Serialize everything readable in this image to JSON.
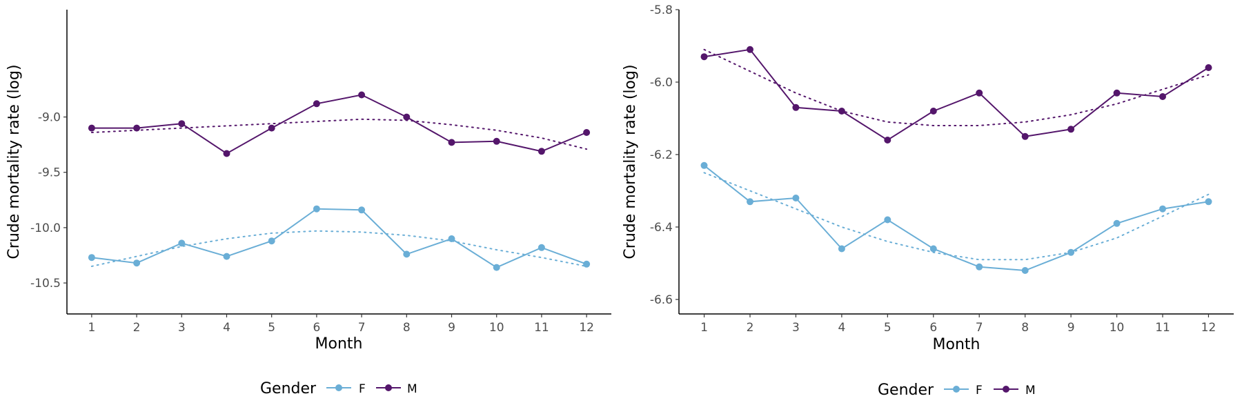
{
  "colors": {
    "F": "#6aaed6",
    "M": "#54166b"
  },
  "legend": {
    "title": "Gender",
    "items": [
      "F",
      "M"
    ],
    "position": "bottom"
  },
  "chart_data": [
    {
      "type": "line",
      "xlabel": "Month",
      "ylabel": "Crude mortality rate (log)",
      "x": [
        1,
        2,
        3,
        4,
        5,
        6,
        7,
        8,
        9,
        10,
        11,
        12
      ],
      "xticks": [
        "1",
        "2",
        "3",
        "4",
        "5",
        "6",
        "7",
        "8",
        "9",
        "10",
        "11",
        "12"
      ],
      "xlim": [
        0.45,
        12.55
      ],
      "ylim": [
        -10.78,
        -8.03
      ],
      "yticks": [
        -9.0,
        -9.5,
        -10.0,
        -10.5
      ],
      "ytick_labels": [
        "-9.0",
        "-9.5",
        "-10.0",
        "-10.5"
      ],
      "grid": false,
      "series": [
        {
          "name": "F",
          "values": [
            -10.27,
            -10.32,
            -10.14,
            -10.26,
            -10.12,
            -9.83,
            -9.84,
            -10.24,
            -10.1,
            -10.36,
            -10.18,
            -10.33
          ],
          "trend": [
            -10.35,
            -10.26,
            -10.17,
            -10.1,
            -10.05,
            -10.03,
            -10.04,
            -10.07,
            -10.12,
            -10.2,
            -10.27,
            -10.35
          ]
        },
        {
          "name": "M",
          "values": [
            -9.1,
            -9.1,
            -9.06,
            -9.33,
            -9.1,
            -8.88,
            -8.8,
            -9.0,
            -9.23,
            -9.22,
            -9.31,
            -9.14
          ],
          "trend": [
            -9.14,
            -9.12,
            -9.1,
            -9.08,
            -9.06,
            -9.04,
            -9.02,
            -9.03,
            -9.07,
            -9.12,
            -9.19,
            -9.29
          ]
        }
      ]
    },
    {
      "type": "line",
      "xlabel": "Month",
      "ylabel": "Crude mortality rate (log)",
      "x": [
        1,
        2,
        3,
        4,
        5,
        6,
        7,
        8,
        9,
        10,
        11,
        12
      ],
      "xticks": [
        "1",
        "2",
        "3",
        "4",
        "5",
        "6",
        "7",
        "8",
        "9",
        "10",
        "11",
        "12"
      ],
      "xlim": [
        0.45,
        12.55
      ],
      "ylim": [
        -6.64,
        -5.8
      ],
      "yticks": [
        -5.8,
        -6.0,
        -6.2,
        -6.4,
        -6.6
      ],
      "ytick_labels": [
        "-5.8",
        "-6.0",
        "-6.2",
        "-6.4",
        "-6.6"
      ],
      "grid": false,
      "series": [
        {
          "name": "F",
          "values": [
            -6.23,
            -6.33,
            -6.32,
            -6.46,
            -6.38,
            -6.46,
            -6.51,
            -6.52,
            -6.47,
            -6.39,
            -6.35,
            -6.33
          ],
          "trend": [
            -6.25,
            -6.3,
            -6.35,
            -6.4,
            -6.44,
            -6.47,
            -6.49,
            -6.49,
            -6.47,
            -6.43,
            -6.37,
            -6.31
          ]
        },
        {
          "name": "M",
          "values": [
            -5.93,
            -5.91,
            -6.07,
            -6.08,
            -6.16,
            -6.08,
            -6.03,
            -6.15,
            -6.13,
            -6.03,
            -6.04,
            -5.96
          ],
          "trend": [
            -5.91,
            -5.97,
            -6.03,
            -6.08,
            -6.11,
            -6.12,
            -6.12,
            -6.11,
            -6.09,
            -6.06,
            -6.02,
            -5.98
          ]
        }
      ]
    }
  ]
}
